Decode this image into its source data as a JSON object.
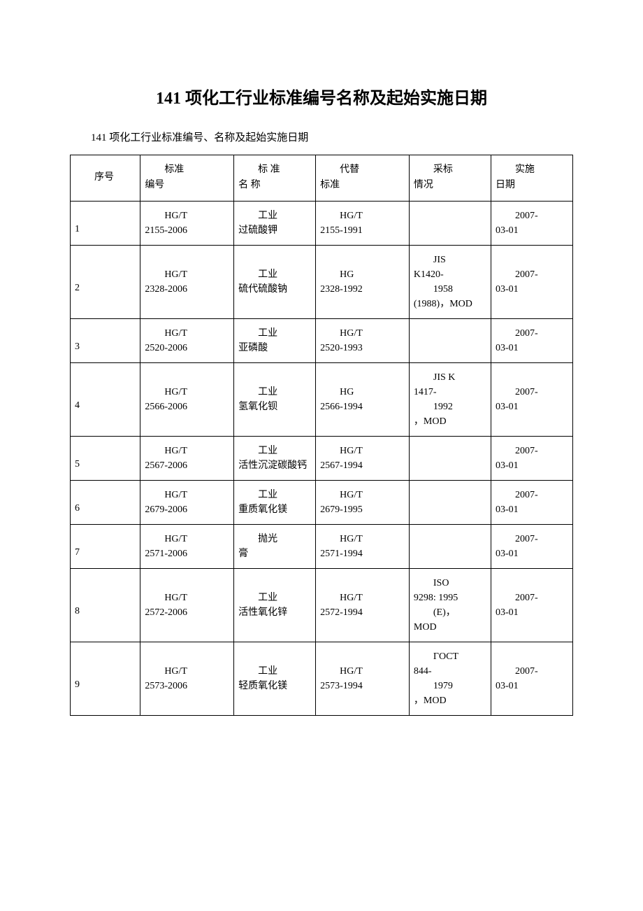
{
  "title": "141 项化工行业标准编号名称及起始实施日期",
  "subtitle": "141 项化工行业标准编号、名称及起始实施日期",
  "headers": {
    "seq": "序号",
    "code_line1": "标准",
    "code_line2": "编号",
    "name_line1": "标 准",
    "name_line2": "名 称",
    "replace_line1": "代替",
    "replace_line2": "标准",
    "adopt_line1": "采标",
    "adopt_line2": "情况",
    "date_line1": "实施",
    "date_line2": "日期"
  },
  "rows": [
    {
      "seq": "1",
      "code_line1": "HG/T",
      "code_line2": "2155-2006",
      "name_line1": "工业",
      "name_line2": "过硫酸钾",
      "replace_line1": "HG/T",
      "replace_line2": "2155-1991",
      "adopt": "",
      "date_line1": "2007-",
      "date_line2": "03-01"
    },
    {
      "seq": "2",
      "code_line1": "HG/T",
      "code_line2": "2328-2006",
      "name_line1": "工业",
      "name_line2": "硫代硫酸钠",
      "replace_line1": "HG",
      "replace_line2": "2328-1992",
      "adopt_line1": "JIS",
      "adopt_line2": "K1420-",
      "adopt_line3": "1958",
      "adopt_line4": "(1988)，MOD",
      "date_line1": "2007-",
      "date_line2": "03-01"
    },
    {
      "seq": "3",
      "code_line1": "HG/T",
      "code_line2": "2520-2006",
      "name_line1": "工业",
      "name_line2": "亚磷酸",
      "replace_line1": "HG/T",
      "replace_line2": "2520-1993",
      "adopt": "",
      "date_line1": "2007-",
      "date_line2": "03-01"
    },
    {
      "seq": "4",
      "code_line1": "HG/T",
      "code_line2": "2566-2006",
      "name_line1": "工业",
      "name_line2": "氢氧化钡",
      "replace_line1": "HG",
      "replace_line2": "2566-1994",
      "adopt_line1": "JIS K",
      "adopt_line2": "1417-",
      "adopt_line3": "1992",
      "adopt_line4": "，MOD",
      "date_line1": "2007-",
      "date_line2": "03-01"
    },
    {
      "seq": "5",
      "code_line1": "HG/T",
      "code_line2": "2567-2006",
      "name_line1": "工业",
      "name_line2": "活性沉淀碳酸钙",
      "replace_line1": "HG/T",
      "replace_line2": "2567-1994",
      "adopt": "",
      "date_line1": "2007-",
      "date_line2": "03-01"
    },
    {
      "seq": "6",
      "code_line1": "HG/T",
      "code_line2": "2679-2006",
      "name_line1": "工业",
      "name_line2": "重质氧化镁",
      "replace_line1": "HG/T",
      "replace_line2": "2679-1995",
      "adopt": "",
      "date_line1": "2007-",
      "date_line2": "03-01"
    },
    {
      "seq": "7",
      "code_line1": "HG/T",
      "code_line2": "2571-2006",
      "name_line1": "抛光",
      "name_line2": "膏",
      "replace_line1": "HG/T",
      "replace_line2": "2571-1994",
      "adopt": "",
      "date_line1": "2007-",
      "date_line2": "03-01"
    },
    {
      "seq": "8",
      "code_line1": "HG/T",
      "code_line2": "2572-2006",
      "name_line1": "工业",
      "name_line2": "活性氧化锌",
      "replace_line1": "HG/T",
      "replace_line2": "2572-1994",
      "adopt_line1": "ISO",
      "adopt_line2": "9298: 1995",
      "adopt_line3": "(E)，",
      "adopt_line4": "MOD",
      "date_line1": "2007-",
      "date_line2": "03-01"
    },
    {
      "seq": "9",
      "code_line1": "HG/T",
      "code_line2": "2573-2006",
      "name_line1": "工业",
      "name_line2": "轻质氧化镁",
      "replace_line1": "HG/T",
      "replace_line2": "2573-1994",
      "adopt_line1": "ГOCТ",
      "adopt_line2": "844-",
      "adopt_line3": "1979",
      "adopt_line4": "，MOD",
      "date_line1": "2007-",
      "date_line2": "03-01"
    }
  ]
}
